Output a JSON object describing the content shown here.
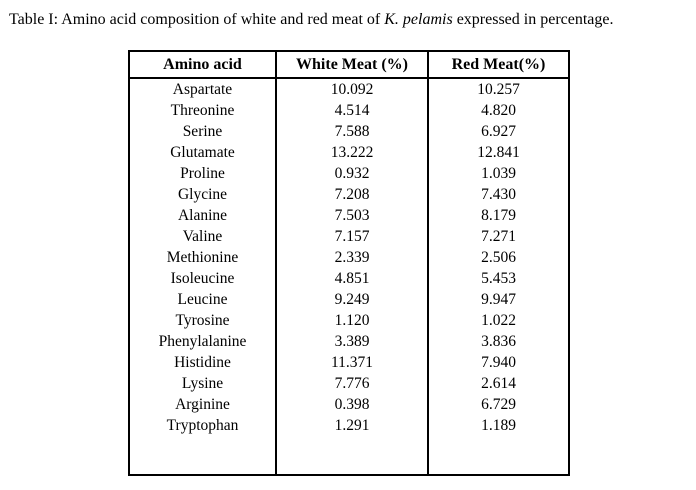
{
  "caption": {
    "prefix": "Table I: Amino acid composition of white and red meat of ",
    "species_italic": "K. pelamis",
    "suffix": " expressed in percentage."
  },
  "table": {
    "headers": [
      "Amino acid",
      "White Meat (%)",
      "Red Meat(%)"
    ],
    "rows": [
      [
        "Aspartate",
        "10.092",
        "10.257"
      ],
      [
        "Threonine",
        "4.514",
        "4.820"
      ],
      [
        "Serine",
        "7.588",
        "6.927"
      ],
      [
        "Glutamate",
        "13.222",
        "12.841"
      ],
      [
        "Proline",
        "0.932",
        "1.039"
      ],
      [
        "Glycine",
        "7.208",
        "7.430"
      ],
      [
        "Alanine",
        "7.503",
        "8.179"
      ],
      [
        "Valine",
        "7.157",
        "7.271"
      ],
      [
        "Methionine",
        "2.339",
        "2.506"
      ],
      [
        "Isoleucine",
        "4.851",
        "5.453"
      ],
      [
        "Leucine",
        "9.249",
        "9.947"
      ],
      [
        "Tyrosine",
        "1.120",
        "1.022"
      ],
      [
        "Phenylalanine",
        "3.389",
        "3.836"
      ],
      [
        "Histidine",
        "11.371",
        "7.940"
      ],
      [
        "Lysine",
        "7.776",
        "2.614"
      ],
      [
        "Arginine",
        "0.398",
        "6.729"
      ],
      [
        "Tryptophan",
        "1.291",
        "1.189"
      ]
    ]
  },
  "colors": {
    "text": "#000000",
    "border": "#000000",
    "background": "#ffffff"
  }
}
